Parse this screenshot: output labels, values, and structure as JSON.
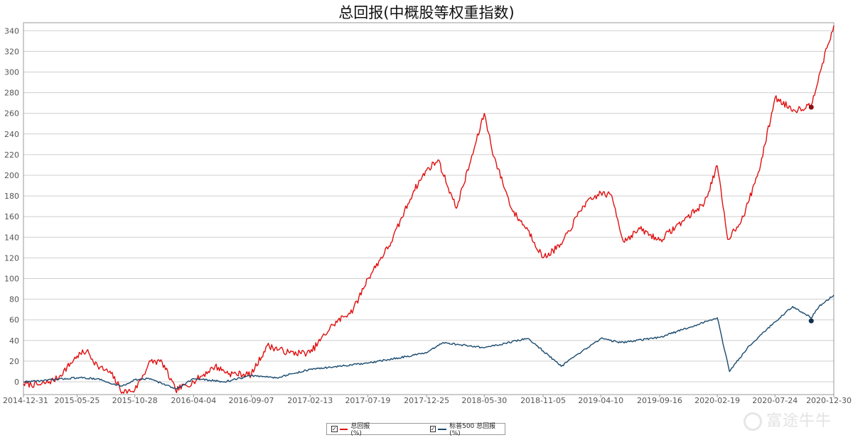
{
  "chart_data": {
    "type": "line",
    "title": "总回报(中概股等权重指数)",
    "ylim": [
      -10,
      345
    ],
    "yticks": [
      0,
      20,
      40,
      60,
      80,
      100,
      120,
      140,
      160,
      180,
      200,
      220,
      240,
      260,
      280,
      300,
      320,
      340
    ],
    "x_tick_labels": [
      "2014-12-31",
      "2015-05-25",
      "2015-10-28",
      "2016-04-04",
      "2016-09-07",
      "2017-02-13",
      "2017-07-19",
      "2017-12-25",
      "2018-05-30",
      "2018-11-05",
      "2019-04-10",
      "2019-09-16",
      "2020-02-19",
      "2020-07-24",
      "2020-12-30"
    ],
    "grid": true,
    "legend_position": "bottom-center",
    "series": [
      {
        "name": "总回报(%)",
        "color": "#e01010",
        "x": [
          "2014-12-31",
          "2015-02-15",
          "2015-04-01",
          "2015-05-25",
          "2015-06-20",
          "2015-07-20",
          "2015-08-25",
          "2015-09-25",
          "2015-10-28",
          "2015-12-10",
          "2016-01-10",
          "2016-02-15",
          "2016-04-04",
          "2016-06-01",
          "2016-07-10",
          "2016-09-07",
          "2016-10-20",
          "2016-12-20",
          "2017-02-13",
          "2017-04-15",
          "2017-06-10",
          "2017-07-19",
          "2017-09-20",
          "2017-11-20",
          "2017-12-25",
          "2018-01-25",
          "2018-03-15",
          "2018-04-20",
          "2018-05-30",
          "2018-06-25",
          "2018-08-15",
          "2018-09-25",
          "2018-11-05",
          "2018-12-25",
          "2019-02-20",
          "2019-04-10",
          "2019-05-10",
          "2019-06-10",
          "2019-07-25",
          "2019-09-16",
          "2019-11-15",
          "2020-01-15",
          "2020-02-19",
          "2020-03-18",
          "2020-04-30",
          "2020-06-15",
          "2020-07-24",
          "2020-09-15",
          "2020-10-30",
          "2020-11-20",
          "2020-12-30"
        ],
        "y": [
          -2,
          -3,
          3,
          25,
          30,
          15,
          8,
          -10,
          -8,
          20,
          19,
          -8,
          0,
          15,
          8,
          7,
          35,
          28,
          28,
          55,
          70,
          100,
          135,
          185,
          205,
          215,
          168,
          210,
          260,
          218,
          165,
          147,
          120,
          133,
          170,
          183,
          180,
          136,
          148,
          137,
          155,
          173,
          209,
          138,
          160,
          210,
          275,
          263,
          268,
          297,
          345
        ]
      },
      {
        "name": "标普500 总回报(%)",
        "color": "#1a4a6e",
        "x": [
          "2014-12-31",
          "2015-02-15",
          "2015-05-25",
          "2015-07-20",
          "2015-08-25",
          "2015-09-25",
          "2015-10-28",
          "2015-12-10",
          "2016-02-15",
          "2016-04-04",
          "2016-06-27",
          "2016-09-07",
          "2016-11-15",
          "2017-02-13",
          "2017-07-19",
          "2017-12-25",
          "2018-02-08",
          "2018-05-30",
          "2018-09-25",
          "2018-11-05",
          "2018-12-24",
          "2019-04-10",
          "2019-06-03",
          "2019-09-16",
          "2020-02-19",
          "2020-03-23",
          "2020-05-15",
          "2020-07-24",
          "2020-09-10",
          "2020-10-30",
          "2020-11-20",
          "2020-12-30"
        ],
        "y": [
          0,
          1,
          4,
          3,
          -2,
          -4,
          2,
          3,
          -7,
          3,
          0,
          6,
          4,
          12,
          18,
          28,
          38,
          33,
          42,
          30,
          15,
          42,
          38,
          43,
          62,
          10,
          35,
          58,
          73,
          62,
          73,
          84
        ]
      }
    ]
  },
  "legend": {
    "item1_label": "总回报(%)",
    "item2_label": "标普500 总回报(%)",
    "check_glyph": "✓"
  },
  "watermark": {
    "text": "富途牛牛"
  }
}
